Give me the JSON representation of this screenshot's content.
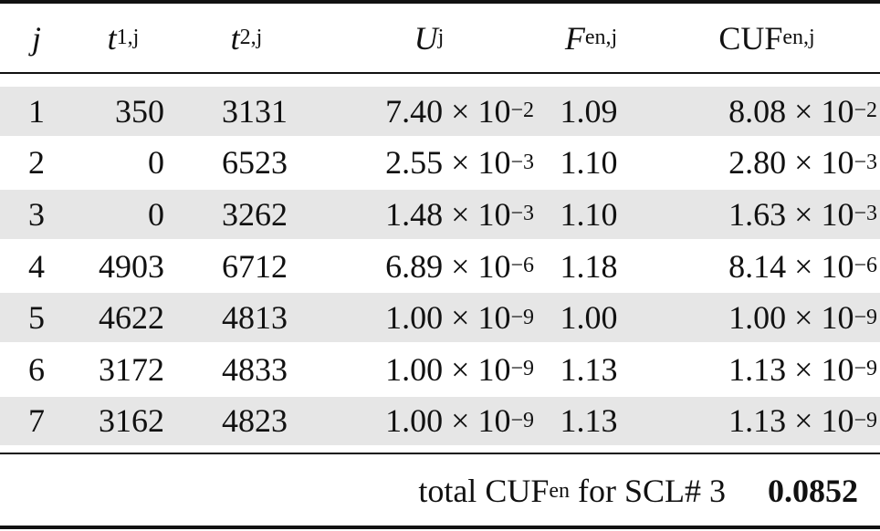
{
  "table": {
    "header": [
      {
        "main": "j"
      },
      {
        "main": "t",
        "sub": "1,j"
      },
      {
        "main": "t",
        "sub": "2,j"
      },
      {
        "main": "U",
        "sub": "j"
      },
      {
        "main": "F",
        "sub": "en,j"
      },
      {
        "main": "CUF",
        "sub": "en,j"
      }
    ],
    "rows": [
      [
        "1",
        "350",
        "3131",
        {
          "base": "7.40 × 10",
          "exp": "−2"
        },
        "1.09",
        {
          "base": "8.08 × 10",
          "exp": "−2"
        }
      ],
      [
        "2",
        "0",
        "6523",
        {
          "base": "2.55 × 10",
          "exp": "−3"
        },
        "1.10",
        {
          "base": "2.80 × 10",
          "exp": "−3"
        }
      ],
      [
        "3",
        "0",
        "3262",
        {
          "base": "1.48 × 10",
          "exp": "−3"
        },
        "1.10",
        {
          "base": "1.63 × 10",
          "exp": "−3"
        }
      ],
      [
        "4",
        "4903",
        "6712",
        {
          "base": "6.89 × 10",
          "exp": "−6"
        },
        "1.18",
        {
          "base": "8.14 × 10",
          "exp": "−6"
        }
      ],
      [
        "5",
        "4622",
        "4813",
        {
          "base": "1.00 × 10",
          "exp": "−9"
        },
        "1.00",
        {
          "base": "1.00 × 10",
          "exp": "−9"
        }
      ],
      [
        "6",
        "3172",
        "4833",
        {
          "base": "1.00 × 10",
          "exp": "−9"
        },
        "1.13",
        {
          "base": "1.13 × 10",
          "exp": "−9"
        }
      ],
      [
        "7",
        "3162",
        "4823",
        {
          "base": "1.00 × 10",
          "exp": "−9"
        },
        "1.13",
        {
          "base": "1.13 × 10",
          "exp": "−9"
        }
      ]
    ],
    "footer": {
      "label": {
        "main": "total CUF",
        "sub": "en",
        "rest": " for SCL# 3"
      },
      "value": "0.0852"
    }
  }
}
